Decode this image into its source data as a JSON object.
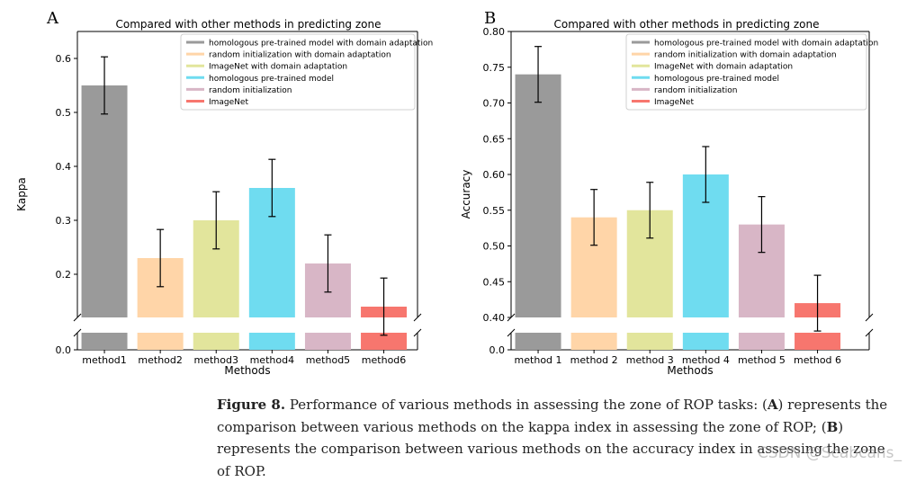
{
  "chart_data": [
    {
      "type": "bar",
      "panel": "A",
      "title": "Compared with other methods in predicting zone",
      "xlabel": "Methods",
      "ylabel": "Kappa",
      "categories": [
        "method1",
        "method2",
        "method3",
        "method4",
        "method5",
        "method6"
      ],
      "values": [
        0.55,
        0.23,
        0.3,
        0.36,
        0.22,
        0.14
      ],
      "errors": [
        0.053,
        0.053,
        0.053,
        0.053,
        0.053,
        0.053
      ],
      "ylim": [
        0.12,
        0.65
      ],
      "yticks": [
        0.2,
        0.3,
        0.4,
        0.5,
        0.6
      ],
      "broken_axis_value": 0.0,
      "legend_position": "top-right"
    },
    {
      "type": "bar",
      "panel": "B",
      "title": "Compared with other methods in predicting zone",
      "xlabel": "Methods",
      "ylabel": "Accuracy",
      "categories": [
        "method 1",
        "method 2",
        "method 3",
        "method 4",
        "method 5",
        "method 6"
      ],
      "values": [
        0.74,
        0.54,
        0.55,
        0.6,
        0.53,
        0.42
      ],
      "errors": [
        0.039,
        0.039,
        0.039,
        0.039,
        0.039,
        0.039
      ],
      "ylim": [
        0.4,
        0.8
      ],
      "yticks": [
        0.4,
        0.45,
        0.5,
        0.55,
        0.6,
        0.65,
        0.7,
        0.75,
        0.8
      ],
      "broken_axis_value": 0.0,
      "legend_position": "top-right"
    }
  ],
  "legend": [
    "homologous pre-trained model with domain adaptation",
    "random initialization with domain adaptation",
    "ImageNet with domain adaptation",
    "homologous pre-trained model",
    "random initialization",
    "ImageNet"
  ],
  "colors": [
    "#9a9a9a",
    "#ffd5a8",
    "#e2e59c",
    "#6fdcf0",
    "#d8b6c6",
    "#f7766e"
  ],
  "caption": {
    "figure_label": "Figure 8.",
    "text_1": " Performance of various methods in assessing the zone of ROP tasks: (",
    "label_a": "A",
    "text_2": ") represents the comparison between various methods on the kappa index in assessing the zone of ROP; (",
    "label_b": "B",
    "text_3": ") represents the comparison between various methods on the accuracy index in assessing the zone of ROP."
  },
  "watermark": "CSDN @Scabcans_"
}
